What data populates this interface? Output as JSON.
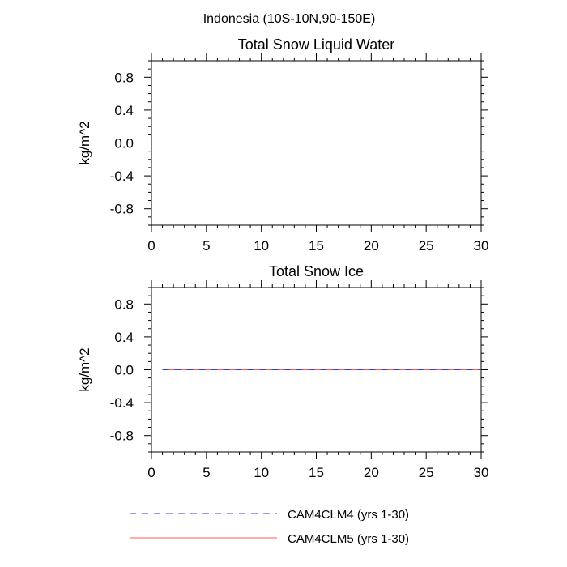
{
  "figure": {
    "title": "Indonesia (10S-10N,90-150E)"
  },
  "colors": {
    "series1": "#3b3bdd",
    "series2": "#ff5a5a"
  },
  "chart_data": [
    {
      "type": "line",
      "title": "Total Snow Liquid Water",
      "xlabel": "",
      "ylabel": "kg/m^2",
      "xlim": [
        0,
        30
      ],
      "ylim": [
        -1,
        1
      ],
      "xticks": [
        0,
        5,
        10,
        15,
        20,
        25,
        30
      ],
      "xtick_labels": [
        "0",
        "5",
        "10",
        "15",
        "20",
        "25",
        "30"
      ],
      "yticks": [
        -0.8,
        -0.4,
        0.0,
        0.4,
        0.8
      ],
      "ytick_labels": [
        "-0.8",
        "-0.4",
        "0.0",
        "0.4",
        "0.8"
      ],
      "series": [
        {
          "name": "CAM4CLM4 (yrs 1-30)",
          "style": "dashed",
          "color": "#3b3bdd",
          "x": [
            1,
            2,
            3,
            4,
            5,
            6,
            7,
            8,
            9,
            10,
            11,
            12,
            13,
            14,
            15,
            16,
            17,
            18,
            19,
            20,
            21,
            22,
            23,
            24,
            25,
            26,
            27,
            28,
            29,
            30
          ],
          "values": [
            0,
            0,
            0,
            0,
            0,
            0,
            0,
            0,
            0,
            0,
            0,
            0,
            0,
            0,
            0,
            0,
            0,
            0,
            0,
            0,
            0,
            0,
            0,
            0,
            0,
            0,
            0,
            0,
            0,
            0
          ]
        },
        {
          "name": "CAM4CLM5 (yrs 1-30)",
          "style": "solid",
          "color": "#ff5a5a",
          "x": [
            1,
            2,
            3,
            4,
            5,
            6,
            7,
            8,
            9,
            10,
            11,
            12,
            13,
            14,
            15,
            16,
            17,
            18,
            19,
            20,
            21,
            22,
            23,
            24,
            25,
            26,
            27,
            28,
            29,
            30
          ],
          "values": [
            0,
            0,
            0,
            0,
            0,
            0,
            0,
            0,
            0,
            0,
            0,
            0,
            0,
            0,
            0,
            0,
            0,
            0,
            0,
            0,
            0,
            0,
            0,
            0,
            0,
            0,
            0,
            0,
            0,
            0
          ]
        }
      ]
    },
    {
      "type": "line",
      "title": "Total Snow Ice",
      "xlabel": "",
      "ylabel": "kg/m^2",
      "xlim": [
        0,
        30
      ],
      "ylim": [
        -1,
        1
      ],
      "xticks": [
        0,
        5,
        10,
        15,
        20,
        25,
        30
      ],
      "xtick_labels": [
        "0",
        "5",
        "10",
        "15",
        "20",
        "25",
        "30"
      ],
      "yticks": [
        -0.8,
        -0.4,
        0.0,
        0.4,
        0.8
      ],
      "ytick_labels": [
        "-0.8",
        "-0.4",
        "0.0",
        "0.4",
        "0.8"
      ],
      "series": [
        {
          "name": "CAM4CLM4 (yrs 1-30)",
          "style": "dashed",
          "color": "#3b3bdd",
          "x": [
            1,
            2,
            3,
            4,
            5,
            6,
            7,
            8,
            9,
            10,
            11,
            12,
            13,
            14,
            15,
            16,
            17,
            18,
            19,
            20,
            21,
            22,
            23,
            24,
            25,
            26,
            27,
            28,
            29,
            30
          ],
          "values": [
            0,
            0,
            0,
            0,
            0,
            0,
            0,
            0,
            0,
            0,
            0,
            0,
            0,
            0,
            0,
            0,
            0,
            0,
            0,
            0,
            0,
            0,
            0,
            0,
            0,
            0,
            0,
            0,
            0,
            0
          ]
        },
        {
          "name": "CAM4CLM5 (yrs 1-30)",
          "style": "solid",
          "color": "#ff5a5a",
          "x": [
            1,
            2,
            3,
            4,
            5,
            6,
            7,
            8,
            9,
            10,
            11,
            12,
            13,
            14,
            15,
            16,
            17,
            18,
            19,
            20,
            21,
            22,
            23,
            24,
            25,
            26,
            27,
            28,
            29,
            30
          ],
          "values": [
            0,
            0,
            0,
            0,
            0,
            0,
            0,
            0,
            0,
            0,
            0,
            0,
            0,
            0,
            0,
            0,
            0,
            0,
            0,
            0,
            0,
            0,
            0,
            0,
            0,
            0,
            0,
            0,
            0,
            0
          ]
        }
      ]
    }
  ],
  "legend": {
    "items": [
      {
        "label": "CAM4CLM4 (yrs 1-30)",
        "style": "dashed",
        "color": "#3b3bdd"
      },
      {
        "label": "CAM4CLM5 (yrs 1-30)",
        "style": "solid",
        "color": "#ff5a5a"
      }
    ]
  }
}
